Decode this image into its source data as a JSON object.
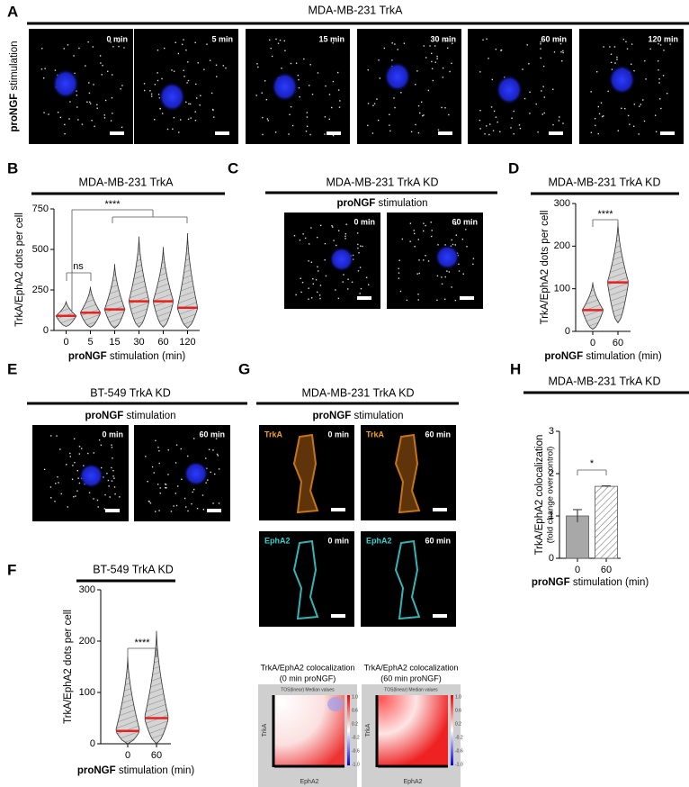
{
  "panel_A": {
    "letter": "A",
    "title": "MDA-MB-231 TrkA",
    "side_label_bold": "proNGF",
    "side_label": "stimulation",
    "time_labels": [
      "0 min",
      "5 min",
      "15 min",
      "30 min",
      "60 min",
      "120 min"
    ]
  },
  "panel_C": {
    "letter": "C",
    "title": "MDA-MB-231 TrkA KD",
    "subtitle_bold": "proNGF",
    "subtitle": "stimulation",
    "time_labels": [
      "0 min",
      "60 min"
    ]
  },
  "panel_E": {
    "letter": "E",
    "title": "BT-549 TrkA KD",
    "subtitle_bold": "proNGF",
    "subtitle": "stimulation",
    "time_labels": [
      "0 min",
      "60 min"
    ]
  },
  "panel_G": {
    "letter": "G",
    "title": "MDA-MB-231 TrkA KD",
    "subtitle_bold": "proNGF",
    "subtitle": "stimulation",
    "rows": [
      {
        "channel": "TrkA",
        "time_labels": [
          "0 min",
          "60 min"
        ]
      },
      {
        "channel": "EphA2",
        "time_labels": [
          "0 min",
          "60 min"
        ]
      }
    ],
    "heatmaps": [
      {
        "caption": "TrkA/EphA2 colocalization",
        "subcaption": "(0 min proNGF)",
        "inner_title": "TOS(linear) Median values",
        "ylabel": "TrkA",
        "xlabel": "EphA2",
        "colorbar_ticks": [
          "1.0",
          "0.6",
          "0.2",
          "-0.2",
          "-0.6",
          "-1.0"
        ]
      },
      {
        "caption": "TrkA/EphA2 colocalization",
        "subcaption": "(60 min proNGF)",
        "inner_title": "TOS(linear) Median values",
        "ylabel": "TrkA",
        "xlabel": "EphA2",
        "colorbar_ticks": [
          "1.0",
          "0.6",
          "0.2",
          "-0.2",
          "-0.6",
          "-1.0"
        ]
      }
    ]
  },
  "chart_data": [
    {
      "type": "violin",
      "letter": "B",
      "title": "MDA-MB-231 TrkA",
      "ylabel": "TrkA/EphA2 dots per cell",
      "xlabel_bold": "proNGF",
      "xlabel": "stimulation (min)",
      "categories": [
        "0",
        "5",
        "15",
        "30",
        "60",
        "120"
      ],
      "values": [
        90,
        110,
        130,
        180,
        180,
        140
      ],
      "min": [
        25,
        20,
        15,
        20,
        20,
        15
      ],
      "max": [
        180,
        270,
        410,
        580,
        515,
        600
      ],
      "color": "#c8c8c8",
      "median_color": "#e8201e",
      "ylim": [
        0,
        750
      ],
      "yticks": [
        0,
        250,
        500,
        750
      ],
      "annotations": [
        "****",
        "ns"
      ]
    },
    {
      "type": "violin",
      "letter": "D",
      "title": "MDA-MB-231 TrkA KD",
      "ylabel": "TrkA/EphA2 dots per cell",
      "xlabel_bold": "proNGF",
      "xlabel": "stimulation (min)",
      "categories": [
        "0",
        "60"
      ],
      "values": [
        50,
        115
      ],
      "min": [
        5,
        20
      ],
      "max": [
        115,
        255
      ],
      "color": "#c8c8c8",
      "median_color": "#e8201e",
      "ylim": [
        0,
        300
      ],
      "yticks": [
        0,
        100,
        200,
        300
      ],
      "annotations": [
        "****"
      ]
    },
    {
      "type": "violin",
      "letter": "F",
      "title": "BT-549 TrkA KD",
      "ylabel": "TrkA/EphA2 dots per cell",
      "xlabel_bold": "proNGF",
      "xlabel": "stimulation (min)",
      "categories": [
        "0",
        "60"
      ],
      "values": [
        25,
        50
      ],
      "min": [
        0,
        0
      ],
      "max": [
        170,
        220
      ],
      "color": "#c8c8c8",
      "median_color": "#e8201e",
      "ylim": [
        0,
        300
      ],
      "yticks": [
        0,
        100,
        200,
        300
      ],
      "annotations": [
        "****"
      ]
    },
    {
      "type": "bar",
      "letter": "H",
      "title": "MDA-MB-231 TrkA KD",
      "ylabel": "TrkA/EphA2 colocalization",
      "ylabel2": "(fold change over control)",
      "xlabel_bold": "proNGF",
      "xlabel": "stimulation (min)",
      "categories": [
        "0",
        "60"
      ],
      "values": [
        1.0,
        1.7
      ],
      "errors": [
        0.15,
        0.01
      ],
      "color": "#a8a8a8",
      "ylim": [
        0,
        3
      ],
      "yticks": [
        0,
        1,
        2,
        3
      ],
      "annotations": [
        "*"
      ]
    }
  ]
}
